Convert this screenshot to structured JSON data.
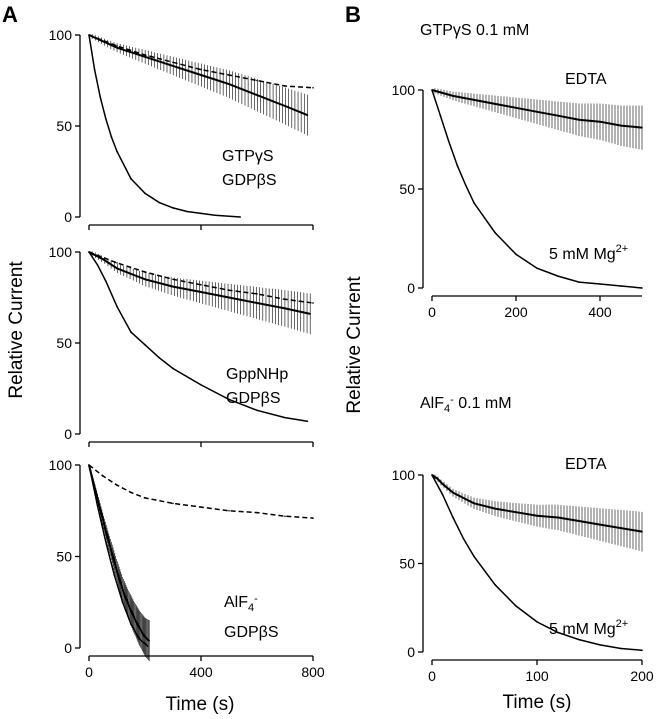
{
  "panel_letters": [
    "A",
    "B"
  ],
  "shared_labels": {
    "ylabel_A": "Relative Current",
    "ylabel_B": "Relative Current",
    "xlabel_A": "Time (s)",
    "xlabel_B": "Time (s)"
  },
  "chart_data": [
    {
      "type": "line",
      "panel": "A",
      "row": 1,
      "annotations": [
        "GTPγS",
        "GDPβS"
      ],
      "xlim": [
        0,
        800
      ],
      "ylim": [
        0,
        100
      ],
      "yticks": [
        0,
        50,
        100
      ],
      "xticks": [
        0,
        400,
        800
      ],
      "show_xtick_labels": false,
      "series": [
        {
          "style": "solid-errorbars",
          "x": [
            0,
            100,
            200,
            300,
            400,
            500,
            600,
            700,
            780
          ],
          "y": [
            100,
            93,
            88,
            83,
            78,
            73,
            67,
            61,
            56
          ]
        },
        {
          "style": "dashed",
          "x": [
            0,
            100,
            200,
            300,
            400,
            500,
            600,
            700,
            800
          ],
          "y": [
            100,
            94,
            89,
            85,
            81,
            78,
            75,
            72,
            71
          ]
        },
        {
          "style": "solid",
          "x": [
            0,
            20,
            40,
            60,
            80,
            100,
            150,
            200,
            250,
            300,
            350,
            400,
            450,
            540
          ],
          "y": [
            100,
            81,
            66,
            54,
            44,
            36,
            21,
            13,
            8,
            5,
            3,
            2,
            1,
            0
          ]
        }
      ]
    },
    {
      "type": "line",
      "panel": "A",
      "row": 2,
      "annotations": [
        "GppNHp",
        "GDPβS"
      ],
      "xlim": [
        0,
        800
      ],
      "ylim": [
        0,
        100
      ],
      "yticks": [
        0,
        50,
        100
      ],
      "xticks": [
        0,
        400,
        800
      ],
      "show_xtick_labels": false,
      "series": [
        {
          "style": "solid-errorbars",
          "x": [
            0,
            50,
            100,
            200,
            300,
            400,
            500,
            600,
            700,
            790
          ],
          "y": [
            100,
            96,
            91,
            85,
            81,
            78,
            75,
            72,
            69,
            66
          ]
        },
        {
          "style": "dashed",
          "x": [
            0,
            100,
            200,
            300,
            400,
            500,
            600,
            700,
            800
          ],
          "y": [
            100,
            94,
            89,
            85,
            82,
            79,
            77,
            74,
            72
          ]
        },
        {
          "style": "solid",
          "x": [
            0,
            30,
            60,
            100,
            150,
            200,
            250,
            300,
            400,
            500,
            600,
            700,
            780
          ],
          "y": [
            100,
            93,
            84,
            70,
            56,
            49,
            42,
            36,
            27,
            19,
            13,
            9,
            7
          ]
        }
      ]
    },
    {
      "type": "line",
      "panel": "A",
      "row": 3,
      "annotations": [
        "AlF4-",
        "GDPβS"
      ],
      "xlim": [
        0,
        800
      ],
      "ylim": [
        0,
        100
      ],
      "yticks": [
        0,
        50,
        100
      ],
      "xticks": [
        0,
        400,
        800
      ],
      "xticklabels": [
        "0",
        "400",
        "800"
      ],
      "series": [
        {
          "style": "solid-errorbars",
          "x": [
            0,
            20,
            40,
            60,
            80,
            100,
            120,
            140,
            160,
            180,
            200,
            215
          ],
          "y": [
            100,
            88,
            76,
            64,
            53,
            42,
            32,
            24,
            17,
            11,
            6,
            4
          ]
        },
        {
          "style": "solid",
          "x": [
            0,
            30,
            60,
            90,
            120,
            150,
            180,
            210
          ],
          "y": [
            100,
            78,
            58,
            40,
            25,
            13,
            5,
            1
          ]
        },
        {
          "style": "dashed",
          "x": [
            0,
            50,
            100,
            150,
            200,
            300,
            400,
            500,
            600,
            700,
            800
          ],
          "y": [
            100,
            94,
            89,
            85,
            82,
            79,
            77,
            75,
            74,
            72,
            71
          ]
        }
      ]
    },
    {
      "type": "line",
      "panel": "B",
      "row": 1,
      "title": "GTPγS  0.1 mM",
      "labels": [
        "EDTA",
        "5 mM Mg2+"
      ],
      "xlim": [
        0,
        500
      ],
      "ylim": [
        0,
        100
      ],
      "yticks": [
        0,
        50,
        100
      ],
      "xticks": [
        0,
        200,
        400
      ],
      "xticklabels": [
        "0",
        "200",
        "400"
      ],
      "series": [
        {
          "style": "solid-errorbars",
          "x": [
            0,
            50,
            100,
            150,
            200,
            250,
            300,
            350,
            400,
            450,
            500
          ],
          "y": [
            100,
            97,
            95,
            93,
            91,
            89,
            87,
            85,
            84,
            82,
            81
          ]
        },
        {
          "style": "solid",
          "x": [
            0,
            20,
            40,
            60,
            80,
            100,
            150,
            200,
            250,
            300,
            350,
            400,
            450,
            500
          ],
          "y": [
            100,
            87,
            74,
            62,
            52,
            43,
            28,
            17,
            10,
            6,
            3,
            2,
            1,
            0
          ]
        }
      ]
    },
    {
      "type": "line",
      "panel": "B",
      "row": 2,
      "title": "AlF4-  0.1 mM",
      "labels": [
        "EDTA",
        "5 mM Mg2+"
      ],
      "xlim": [
        0,
        200
      ],
      "ylim": [
        0,
        100
      ],
      "yticks": [
        0,
        50,
        100
      ],
      "xticks": [
        0,
        100,
        200
      ],
      "xticklabels": [
        "0",
        "100",
        "200"
      ],
      "series": [
        {
          "style": "solid-errorbars",
          "x": [
            0,
            5,
            10,
            20,
            30,
            40,
            60,
            80,
            100,
            120,
            140,
            160,
            180,
            200
          ],
          "y": [
            100,
            98,
            95,
            90,
            87,
            84,
            81,
            79,
            77,
            76,
            74,
            72,
            70,
            68
          ]
        },
        {
          "style": "solid",
          "x": [
            0,
            10,
            20,
            30,
            40,
            50,
            60,
            80,
            100,
            120,
            140,
            160,
            180,
            200
          ],
          "y": [
            100,
            89,
            76,
            64,
            54,
            46,
            38,
            26,
            17,
            11,
            7,
            4,
            2,
            1
          ]
        }
      ]
    }
  ]
}
